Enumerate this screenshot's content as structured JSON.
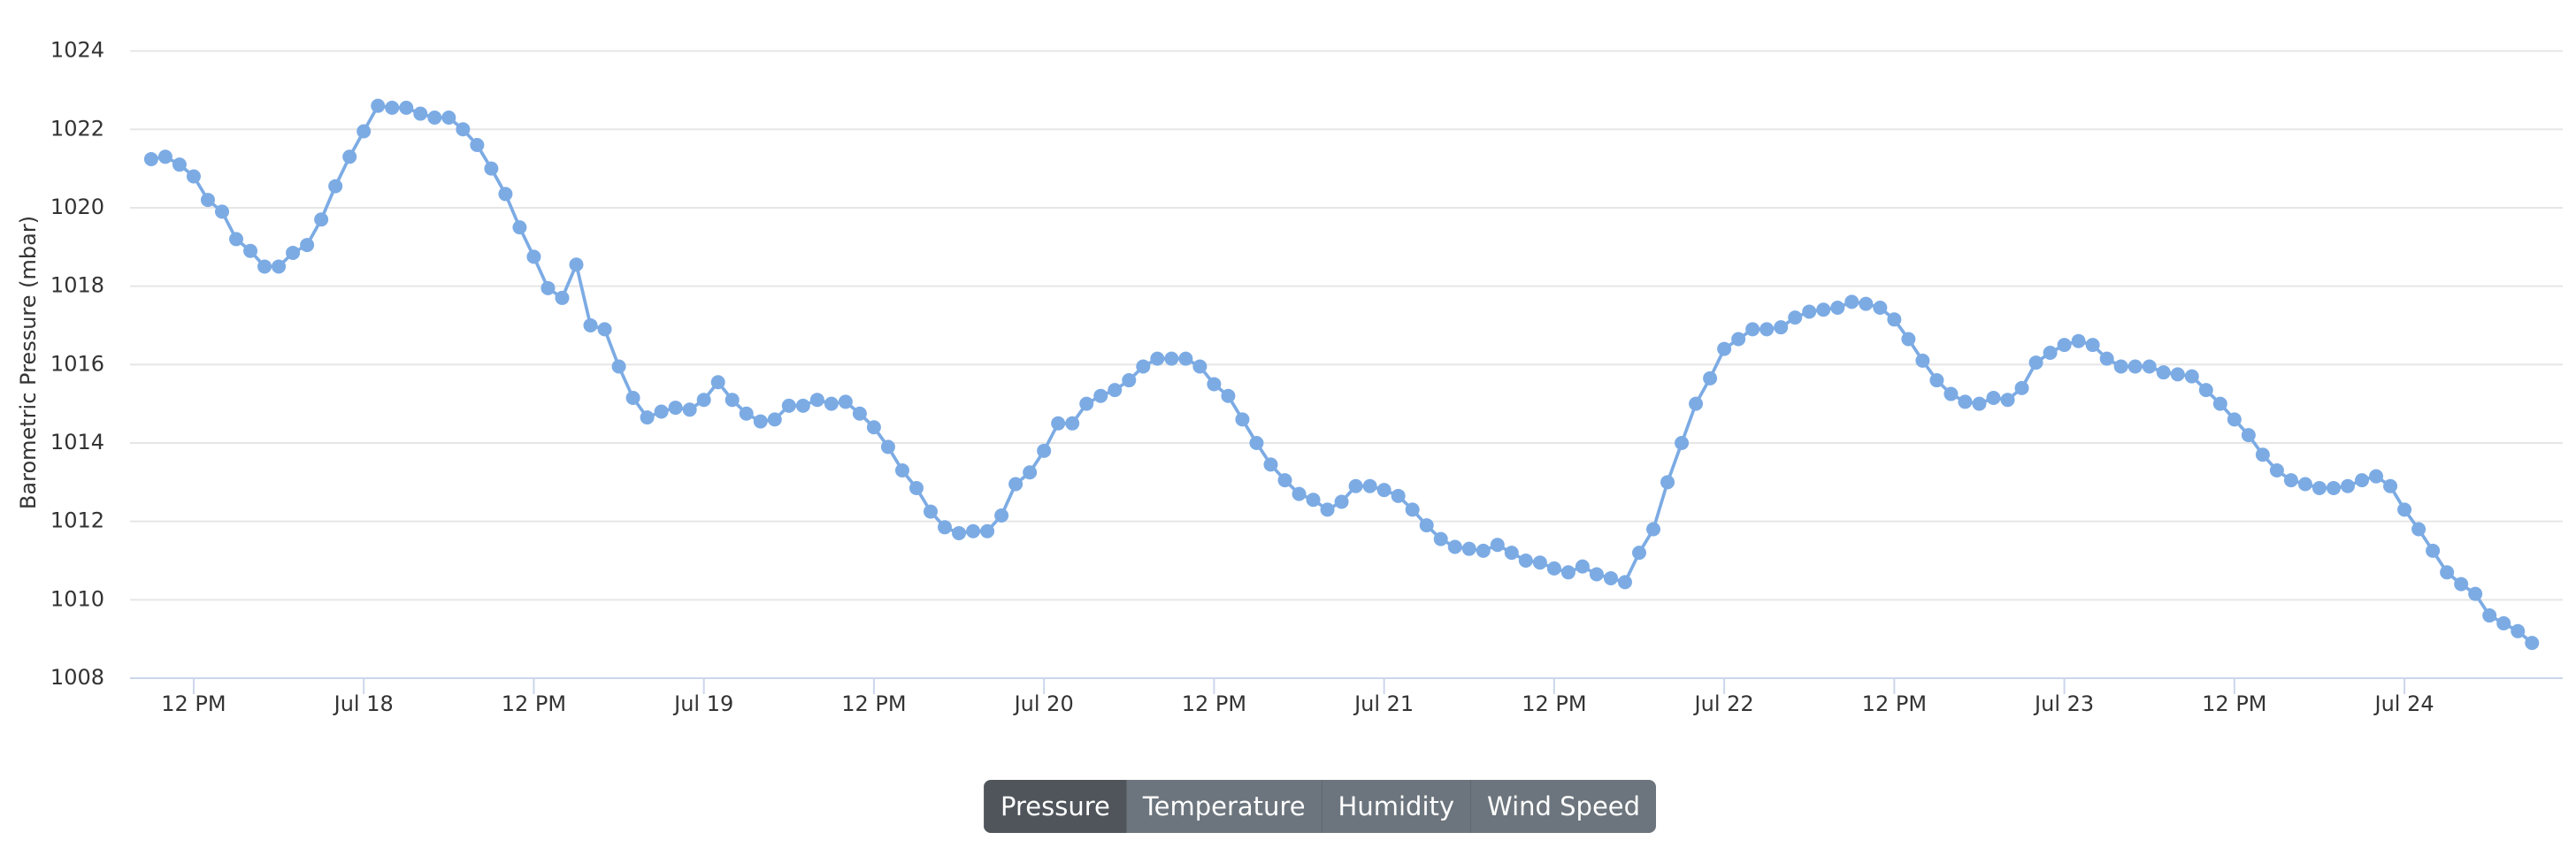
{
  "chart_data": {
    "type": "line",
    "y_label": "Barometric Pressure (mbar)",
    "x": [
      "Jul 17 9 AM",
      "Jul 17 10 AM",
      "Jul 17 11 AM",
      "Jul 17 12 PM",
      "Jul 17 1 PM",
      "Jul 17 2 PM",
      "Jul 17 3 PM",
      "Jul 17 4 PM",
      "Jul 17 5 PM",
      "Jul 17 6 PM",
      "Jul 17 7 PM",
      "Jul 17 8 PM",
      "Jul 17 9 PM",
      "Jul 17 10 PM",
      "Jul 17 11 PM",
      "Jul 18 12 AM",
      "Jul 18 1 AM",
      "Jul 18 2 AM",
      "Jul 18 3 AM",
      "Jul 18 4 AM",
      "Jul 18 5 AM",
      "Jul 18 6 AM",
      "Jul 18 7 AM",
      "Jul 18 8 AM",
      "Jul 18 9 AM",
      "Jul 18 10 AM",
      "Jul 18 11 AM",
      "Jul 18 12 PM",
      "Jul 18 1 PM",
      "Jul 18 2 PM",
      "Jul 18 3 PM",
      "Jul 18 4 PM",
      "Jul 18 5 PM",
      "Jul 18 6 PM",
      "Jul 18 7 PM",
      "Jul 18 8 PM",
      "Jul 18 9 PM",
      "Jul 18 10 PM",
      "Jul 18 11 PM",
      "Jul 19 12 AM",
      "Jul 19 1 AM",
      "Jul 19 2 AM",
      "Jul 19 3 AM",
      "Jul 19 4 AM",
      "Jul 19 5 AM",
      "Jul 19 6 AM",
      "Jul 19 7 AM",
      "Jul 19 8 AM",
      "Jul 19 9 AM",
      "Jul 19 10 AM",
      "Jul 19 11 AM",
      "Jul 19 12 PM",
      "Jul 19 1 PM",
      "Jul 19 2 PM",
      "Jul 19 3 PM",
      "Jul 19 4 PM",
      "Jul 19 5 PM",
      "Jul 19 6 PM",
      "Jul 19 7 PM",
      "Jul 19 8 PM",
      "Jul 19 9 PM",
      "Jul 19 10 PM",
      "Jul 19 11 PM",
      "Jul 20 12 AM",
      "Jul 20 1 AM",
      "Jul 20 2 AM",
      "Jul 20 3 AM",
      "Jul 20 4 AM",
      "Jul 20 5 AM",
      "Jul 20 6 AM",
      "Jul 20 7 AM",
      "Jul 20 8 AM",
      "Jul 20 9 AM",
      "Jul 20 10 AM",
      "Jul 20 11 AM",
      "Jul 20 12 PM",
      "Jul 20 1 PM",
      "Jul 20 2 PM",
      "Jul 20 3 PM",
      "Jul 20 4 PM",
      "Jul 20 5 PM",
      "Jul 20 6 PM",
      "Jul 20 7 PM",
      "Jul 20 8 PM",
      "Jul 20 9 PM",
      "Jul 20 10 PM",
      "Jul 20 11 PM",
      "Jul 21 12 AM",
      "Jul 21 1 AM",
      "Jul 21 2 AM",
      "Jul 21 3 AM",
      "Jul 21 4 AM",
      "Jul 21 5 AM",
      "Jul 21 6 AM",
      "Jul 21 7 AM",
      "Jul 21 8 AM",
      "Jul 21 9 AM",
      "Jul 21 10 AM",
      "Jul 21 11 AM",
      "Jul 21 12 PM",
      "Jul 21 1 PM",
      "Jul 21 2 PM",
      "Jul 21 3 PM",
      "Jul 21 4 PM",
      "Jul 21 5 PM",
      "Jul 21 6 PM",
      "Jul 21 7 PM",
      "Jul 21 8 PM",
      "Jul 21 9 PM",
      "Jul 21 10 PM",
      "Jul 21 11 PM",
      "Jul 22 12 AM",
      "Jul 22 1 AM",
      "Jul 22 2 AM",
      "Jul 22 3 AM",
      "Jul 22 4 AM",
      "Jul 22 5 AM",
      "Jul 22 6 AM",
      "Jul 22 7 AM",
      "Jul 22 8 AM",
      "Jul 22 9 AM",
      "Jul 22 10 AM",
      "Jul 22 11 AM",
      "Jul 22 12 PM",
      "Jul 22 1 PM",
      "Jul 22 2 PM",
      "Jul 22 3 PM",
      "Jul 22 4 PM",
      "Jul 22 5 PM",
      "Jul 22 6 PM",
      "Jul 22 7 PM",
      "Jul 22 8 PM",
      "Jul 22 9 PM",
      "Jul 22 10 PM",
      "Jul 22 11 PM",
      "Jul 23 12 AM",
      "Jul 23 1 AM",
      "Jul 23 2 AM",
      "Jul 23 3 AM",
      "Jul 23 4 AM",
      "Jul 23 5 AM",
      "Jul 23 6 AM",
      "Jul 23 7 AM",
      "Jul 23 8 AM",
      "Jul 23 9 AM",
      "Jul 23 10 AM",
      "Jul 23 11 AM",
      "Jul 23 12 PM",
      "Jul 23 1 PM",
      "Jul 23 2 PM",
      "Jul 23 3 PM",
      "Jul 23 4 PM",
      "Jul 23 5 PM",
      "Jul 23 6 PM",
      "Jul 23 7 PM",
      "Jul 23 8 PM",
      "Jul 23 9 PM",
      "Jul 23 10 PM",
      "Jul 23 11 PM",
      "Jul 24 12 AM",
      "Jul 24 1 AM",
      "Jul 24 2 AM",
      "Jul 24 3 AM",
      "Jul 24 4 AM",
      "Jul 24 5 AM",
      "Jul 24 6 AM",
      "Jul 24 7 AM",
      "Jul 24 8 AM",
      "Jul 24 9 AM"
    ],
    "series": [
      {
        "name": "Pressure",
        "color": "#7cabe4",
        "values": [
          1021.24,
          1021.3,
          1021.1,
          1020.8,
          1020.2,
          1019.9,
          1019.2,
          1018.9,
          1018.5,
          1018.5,
          1018.85,
          1019.05,
          1019.7,
          1020.55,
          1021.3,
          1021.95,
          1022.6,
          1022.55,
          1022.55,
          1022.4,
          1022.3,
          1022.3,
          1022.0,
          1021.6,
          1021.0,
          1020.35,
          1019.5,
          1018.75,
          1017.95,
          1017.7,
          1018.55,
          1017.0,
          1016.9,
          1015.95,
          1015.15,
          1014.65,
          1014.8,
          1014.9,
          1014.85,
          1015.1,
          1015.55,
          1015.1,
          1014.75,
          1014.55,
          1014.6,
          1014.95,
          1014.95,
          1015.1,
          1015.0,
          1015.05,
          1014.75,
          1014.4,
          1013.9,
          1013.3,
          1012.85,
          1012.25,
          1011.85,
          1011.7,
          1011.75,
          1011.75,
          1012.15,
          1012.95,
          1013.25,
          1013.8,
          1014.5,
          1014.5,
          1015.0,
          1015.2,
          1015.35,
          1015.6,
          1015.95,
          1016.15,
          1016.15,
          1016.15,
          1015.95,
          1015.5,
          1015.2,
          1014.6,
          1014.0,
          1013.45,
          1013.05,
          1012.7,
          1012.55,
          1012.3,
          1012.5,
          1012.9,
          1012.9,
          1012.8,
          1012.65,
          1012.3,
          1011.9,
          1011.55,
          1011.35,
          1011.3,
          1011.25,
          1011.4,
          1011.2,
          1011.0,
          1010.95,
          1010.8,
          1010.7,
          1010.85,
          1010.65,
          1010.55,
          1010.45,
          1011.2,
          1011.8,
          1013.0,
          1014.0,
          1015.0,
          1015.65,
          1016.4,
          1016.65,
          1016.9,
          1016.9,
          1016.95,
          1017.2,
          1017.35,
          1017.4,
          1017.45,
          1017.6,
          1017.55,
          1017.45,
          1017.15,
          1016.65,
          1016.1,
          1015.6,
          1015.25,
          1015.05,
          1015.0,
          1015.15,
          1015.1,
          1015.4,
          1016.05,
          1016.3,
          1016.5,
          1016.6,
          1016.5,
          1016.15,
          1015.95,
          1015.95,
          1015.95,
          1015.8,
          1015.75,
          1015.7,
          1015.35,
          1015.0,
          1014.6,
          1014.2,
          1013.7,
          1013.3,
          1013.05,
          1012.95,
          1012.85,
          1012.85,
          1012.9,
          1013.05,
          1013.15,
          1012.9,
          1012.3,
          1011.8,
          1011.25,
          1010.7,
          1010.4,
          1010.15,
          1009.6,
          1009.4,
          1009.2,
          1008.9
        ]
      }
    ],
    "ylim": [
      1008,
      1024
    ],
    "yticks": [
      1008,
      1010,
      1012,
      1014,
      1016,
      1018,
      1020,
      1022,
      1024
    ],
    "xticks": [
      {
        "value": "Jul 17 12 PM",
        "label": "12 PM"
      },
      {
        "value": "Jul 18 12 AM",
        "label": "Jul 18"
      },
      {
        "value": "Jul 18 12 PM",
        "label": "12 PM"
      },
      {
        "value": "Jul 19 12 AM",
        "label": "Jul 19"
      },
      {
        "value": "Jul 19 12 PM",
        "label": "12 PM"
      },
      {
        "value": "Jul 20 12 AM",
        "label": "Jul 20"
      },
      {
        "value": "Jul 20 12 PM",
        "label": "12 PM"
      },
      {
        "value": "Jul 21 12 AM",
        "label": "Jul 21"
      },
      {
        "value": "Jul 21 12 PM",
        "label": "12 PM"
      },
      {
        "value": "Jul 22 12 AM",
        "label": "Jul 22"
      },
      {
        "value": "Jul 22 12 PM",
        "label": "12 PM"
      },
      {
        "value": "Jul 23 12 AM",
        "label": "Jul 23"
      },
      {
        "value": "Jul 23 12 PM",
        "label": "12 PM"
      },
      {
        "value": "Jul 24 12 AM",
        "label": "Jul 24"
      }
    ],
    "grid": true,
    "markers": true
  },
  "buttons": [
    "Pressure",
    "Temperature",
    "Humidity",
    "Wind Speed"
  ],
  "selected_button": 0
}
